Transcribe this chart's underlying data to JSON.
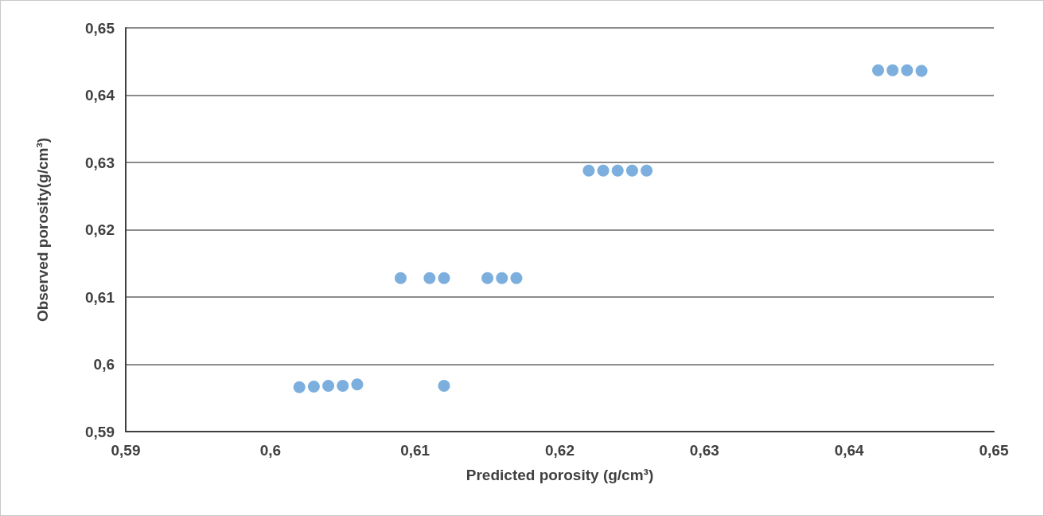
{
  "chart_data": {
    "type": "scatter",
    "xlabel": "Predicted porosity (g/cm³)",
    "ylabel": "Observed porosity(g/cm³)",
    "x": [
      0.602,
      0.603,
      0.604,
      0.605,
      0.606,
      0.612,
      0.609,
      0.611,
      0.612,
      0.615,
      0.616,
      0.617,
      0.622,
      0.623,
      0.624,
      0.625,
      0.626,
      0.642,
      0.643,
      0.644,
      0.645
    ],
    "series": [
      {
        "color": "#5b9bd5",
        "values": [
          0.5966,
          0.5967,
          0.5968,
          0.5968,
          0.597,
          0.5968,
          0.6128,
          0.6128,
          0.6128,
          0.6128,
          0.6128,
          0.6128,
          0.6288,
          0.6288,
          0.6288,
          0.6288,
          0.6288,
          0.6437,
          0.6437,
          0.6437,
          0.6436
        ]
      }
    ],
    "xlim": [
      0.59,
      0.65
    ],
    "xticks": [
      {
        "value": 0.59,
        "label": "0,59"
      },
      {
        "value": 0.6,
        "label": "0,6"
      },
      {
        "value": 0.61,
        "label": "0,61"
      },
      {
        "value": 0.62,
        "label": "0,62"
      },
      {
        "value": 0.63,
        "label": "0,63"
      },
      {
        "value": 0.64,
        "label": "0,64"
      },
      {
        "value": 0.65,
        "label": "0,65"
      }
    ],
    "ylim": [
      0.59,
      0.65
    ],
    "yticks": [
      {
        "value": 0.59,
        "label": "0,59"
      },
      {
        "value": 0.6,
        "label": "0,6"
      },
      {
        "value": 0.61,
        "label": "0,61"
      },
      {
        "value": 0.62,
        "label": "0,62"
      },
      {
        "value": 0.63,
        "label": "0,63"
      },
      {
        "value": 0.64,
        "label": "0,64"
      },
      {
        "value": 0.65,
        "label": "0,65"
      }
    ],
    "grid": "y",
    "marker": "circle"
  }
}
